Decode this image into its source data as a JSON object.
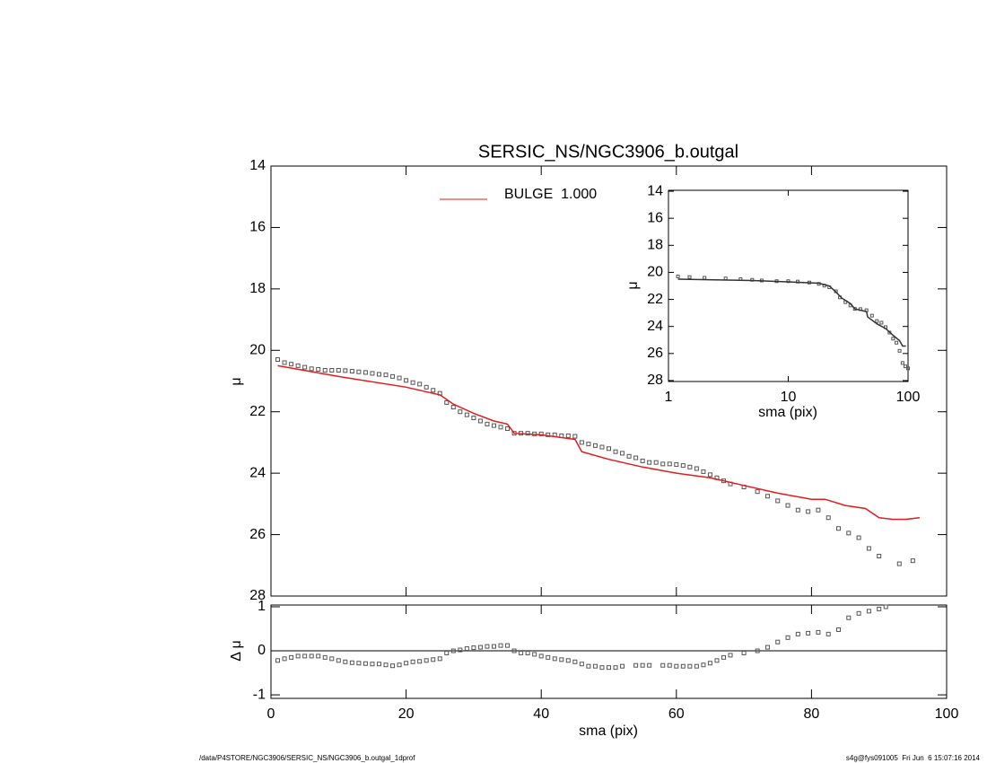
{
  "chart_data": [
    {
      "type": "scatter",
      "title": "SERSIC_NS/NGC3906_b.outgal",
      "x_label": "sma (pix)",
      "y_label": "μ",
      "xlim": [
        0,
        100
      ],
      "xticks": [
        0,
        20,
        40,
        60,
        80,
        100
      ],
      "ylim": [
        28,
        14
      ],
      "yticks": [
        14,
        16,
        18,
        20,
        22,
        24,
        26,
        28
      ],
      "series": [
        {
          "style": "markers",
          "color": "#555555",
          "x": [
            1,
            2,
            3,
            4,
            5,
            6,
            7,
            8,
            9,
            10,
            11,
            12,
            13,
            14,
            15,
            16,
            17,
            18,
            19,
            20,
            21,
            22,
            23,
            24,
            25,
            26,
            27,
            28,
            29,
            30,
            31,
            32,
            33,
            34,
            35,
            36,
            37,
            38,
            39,
            40,
            41,
            42,
            43,
            44,
            45,
            46,
            47,
            48,
            49,
            50,
            51,
            52,
            53,
            54,
            55,
            56,
            57,
            58,
            59,
            60,
            61,
            62,
            63,
            64,
            65,
            66,
            67,
            68,
            70,
            72,
            73.5,
            75,
            76.5,
            78,
            79.5,
            81,
            82.5,
            84,
            85.5,
            87,
            88.5,
            90,
            93,
            95
          ],
          "values": [
            20.3,
            20.4,
            20.45,
            20.5,
            20.55,
            20.6,
            20.62,
            20.65,
            20.65,
            20.65,
            20.66,
            20.68,
            20.7,
            20.72,
            20.75,
            20.78,
            20.8,
            20.85,
            20.9,
            20.98,
            21.05,
            21.1,
            21.2,
            21.3,
            21.4,
            21.7,
            21.85,
            22.0,
            22.1,
            22.2,
            22.3,
            22.4,
            22.45,
            22.5,
            22.55,
            22.7,
            22.7,
            22.7,
            22.72,
            22.72,
            22.75,
            22.75,
            22.78,
            22.78,
            22.8,
            23.0,
            23.05,
            23.1,
            23.15,
            23.2,
            23.3,
            23.35,
            23.45,
            23.5,
            23.6,
            23.65,
            23.65,
            23.7,
            23.7,
            23.72,
            23.75,
            23.8,
            23.85,
            23.95,
            24.05,
            24.15,
            24.25,
            24.35,
            24.45,
            24.6,
            24.75,
            24.9,
            25.05,
            25.2,
            25.25,
            25.2,
            25.45,
            25.8,
            25.95,
            26.1,
            26.45,
            26.7,
            26.95,
            26.85
          ]
        },
        {
          "style": "line",
          "name": "BULGE  1.000",
          "color": "#e41a1c",
          "x": [
            1,
            10,
            20,
            25,
            26,
            27,
            30,
            33,
            35,
            36,
            40,
            45,
            46,
            50,
            55,
            60,
            65,
            70,
            75,
            80,
            82,
            85,
            88,
            90,
            92,
            94,
            96
          ],
          "values": [
            20.5,
            20.85,
            21.2,
            21.45,
            21.6,
            21.75,
            22.05,
            22.3,
            22.4,
            22.7,
            22.75,
            22.9,
            23.3,
            23.55,
            23.8,
            24.0,
            24.15,
            24.4,
            24.65,
            24.85,
            24.85,
            25.05,
            25.15,
            25.45,
            25.5,
            25.5,
            25.45
          ]
        }
      ]
    },
    {
      "type": "scatter",
      "x_label": "sma (pix)",
      "y_label": "Δ μ",
      "hline": 0,
      "xlim": [
        0,
        100
      ],
      "xticks": [
        0,
        20,
        40,
        60,
        80,
        100
      ],
      "ylim": [
        -1.08,
        1.04
      ],
      "yticks": [
        -1,
        0,
        1
      ],
      "series": [
        {
          "style": "markers",
          "color": "#555555",
          "x": [
            1,
            2,
            3,
            4,
            5,
            6,
            7,
            8,
            9,
            10,
            11,
            12,
            13,
            14,
            15,
            16,
            17,
            18,
            19,
            20,
            21,
            22,
            23,
            24,
            25,
            26,
            27,
            28,
            29,
            30,
            31,
            32,
            33,
            34,
            35,
            36,
            37,
            38,
            39,
            40,
            41,
            42,
            43,
            44,
            45,
            46,
            47,
            48,
            49,
            50,
            51,
            52,
            54,
            55,
            56,
            58,
            59,
            60,
            61,
            62,
            63,
            64,
            65,
            66,
            67,
            68,
            70,
            72,
            73.5,
            75,
            76.5,
            78,
            79.5,
            81,
            82.5,
            84,
            85.5,
            87,
            88.5,
            90,
            91
          ],
          "values": [
            -0.22,
            -0.18,
            -0.15,
            -0.12,
            -0.12,
            -0.12,
            -0.12,
            -0.15,
            -0.18,
            -0.22,
            -0.25,
            -0.27,
            -0.28,
            -0.29,
            -0.3,
            -0.3,
            -0.32,
            -0.34,
            -0.32,
            -0.28,
            -0.25,
            -0.24,
            -0.22,
            -0.2,
            -0.18,
            -0.05,
            0.0,
            0.02,
            0.05,
            0.07,
            0.08,
            0.1,
            0.1,
            0.12,
            0.12,
            0.0,
            -0.05,
            -0.05,
            -0.08,
            -0.12,
            -0.15,
            -0.18,
            -0.2,
            -0.22,
            -0.25,
            -0.3,
            -0.35,
            -0.35,
            -0.38,
            -0.38,
            -0.38,
            -0.35,
            -0.33,
            -0.33,
            -0.33,
            -0.33,
            -0.33,
            -0.35,
            -0.35,
            -0.35,
            -0.35,
            -0.32,
            -0.28,
            -0.22,
            -0.15,
            -0.1,
            -0.05,
            0.0,
            0.08,
            0.2,
            0.3,
            0.38,
            0.4,
            0.42,
            0.38,
            0.48,
            0.75,
            0.85,
            0.9,
            0.95,
            1.0
          ]
        }
      ]
    },
    {
      "type": "scatter",
      "x_label": "sma (pix)",
      "y_label": "μ",
      "xlog": true,
      "xlim": [
        1,
        100
      ],
      "xticks": [
        1,
        10,
        100
      ],
      "ylim": [
        28.07,
        13.93
      ],
      "yticks": [
        14,
        16,
        18,
        20,
        22,
        24,
        26,
        28
      ],
      "series": [
        {
          "style": "markers",
          "color": "#555555",
          "x": [
            1.2,
            1.5,
            2,
            3,
            4,
            5,
            6,
            8,
            10,
            12,
            15,
            18,
            20,
            22,
            25,
            27,
            30,
            33,
            36,
            40,
            45,
            50,
            55,
            60,
            65,
            70,
            75,
            80,
            85,
            90,
            95,
            100
          ],
          "values": [
            20.3,
            20.35,
            20.4,
            20.45,
            20.5,
            20.55,
            20.6,
            20.65,
            20.65,
            20.68,
            20.75,
            20.85,
            20.98,
            21.1,
            21.4,
            21.85,
            22.2,
            22.45,
            22.7,
            22.72,
            22.8,
            23.2,
            23.6,
            23.72,
            24.05,
            24.45,
            24.9,
            25.2,
            25.8,
            26.7,
            26.95,
            27.1
          ]
        },
        {
          "style": "line",
          "color": "#333333",
          "x": [
            1.2,
            5,
            10,
            18,
            22,
            25,
            28,
            33,
            36,
            45,
            46,
            55,
            65,
            75,
            85,
            90,
            96
          ],
          "values": [
            20.5,
            20.6,
            20.7,
            20.8,
            21.0,
            21.45,
            21.9,
            22.3,
            22.7,
            22.9,
            23.3,
            23.8,
            24.15,
            24.65,
            25.05,
            25.45,
            25.45
          ]
        }
      ]
    }
  ],
  "footer": {
    "left": "/data/P4STORE/NGC3906/SERSIC_NS/NGC3906_b.outgal_1dprof",
    "right": "s4g@fys091005  Fri Jun  6 15:07:16 2014"
  }
}
